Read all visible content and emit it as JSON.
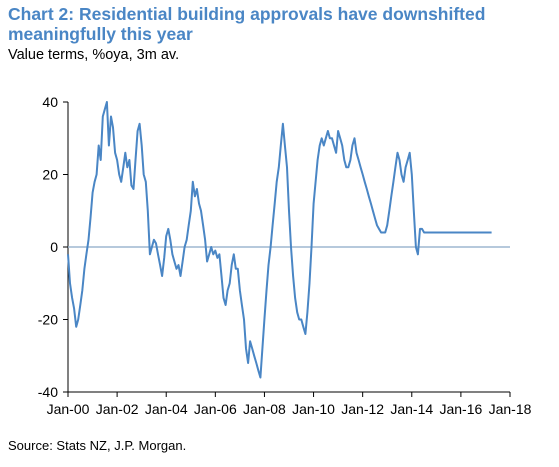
{
  "title": "Chart 2: Residential building approvals have downshifted meaningfully this year",
  "subtitle": "Value terms, %oya, 3m av.",
  "source": "Source: Stats NZ, J.P. Morgan.",
  "chart_data": {
    "type": "line",
    "xlim": [
      "2000-01",
      "2018-01"
    ],
    "ylim": [
      -40,
      40
    ],
    "yticks": [
      40,
      20,
      0,
      -20,
      -40
    ],
    "ytick_labels": [
      "40",
      "20",
      "0",
      "-20",
      "-40"
    ],
    "xticks": [
      "2000-01",
      "2002-01",
      "2004-01",
      "2006-01",
      "2008-01",
      "2010-01",
      "2012-01",
      "2014-01",
      "2016-01",
      "2018-01"
    ],
    "xtick_labels": [
      "Jan-00",
      "Jan-02",
      "Jan-04",
      "Jan-06",
      "Jan-08",
      "Jan-10",
      "Jan-12",
      "Jan-14",
      "Jan-16",
      "Jan-18"
    ],
    "grid": false,
    "zero_line": true,
    "line_color": "#4a86c5",
    "zero_line_color": "#9db7d0",
    "series": [
      {
        "name": "",
        "x": [
          "2000-01",
          "2000-02",
          "2000-03",
          "2000-04",
          "2000-05",
          "2000-06",
          "2000-07",
          "2000-08",
          "2000-09",
          "2000-10",
          "2000-11",
          "2000-12",
          "2001-01",
          "2001-02",
          "2001-03",
          "2001-04",
          "2001-05",
          "2001-06",
          "2001-07",
          "2001-08",
          "2001-09",
          "2001-10",
          "2001-11",
          "2001-12",
          "2002-01",
          "2002-02",
          "2002-03",
          "2002-04",
          "2002-05",
          "2002-06",
          "2002-07",
          "2002-08",
          "2002-09",
          "2002-10",
          "2002-11",
          "2002-12",
          "2003-01",
          "2003-02",
          "2003-03",
          "2003-04",
          "2003-05",
          "2003-06",
          "2003-07",
          "2003-08",
          "2003-09",
          "2003-10",
          "2003-11",
          "2003-12",
          "2004-01",
          "2004-02",
          "2004-03",
          "2004-04",
          "2004-05",
          "2004-06",
          "2004-07",
          "2004-08",
          "2004-09",
          "2004-10",
          "2004-11",
          "2004-12",
          "2005-01",
          "2005-02",
          "2005-03",
          "2005-04",
          "2005-05",
          "2005-06",
          "2005-07",
          "2005-08",
          "2005-09",
          "2005-10",
          "2005-11",
          "2005-12",
          "2006-01",
          "2006-02",
          "2006-03",
          "2006-04",
          "2006-05",
          "2006-06",
          "2006-07",
          "2006-08",
          "2006-09",
          "2006-10",
          "2006-11",
          "2006-12",
          "2007-01",
          "2007-02",
          "2007-03",
          "2007-04",
          "2007-05",
          "2007-06",
          "2007-07",
          "2007-08",
          "2007-09",
          "2007-10",
          "2007-11",
          "2007-12",
          "2008-01",
          "2008-02",
          "2008-03",
          "2008-04",
          "2008-05",
          "2008-06",
          "2008-07",
          "2008-08",
          "2008-09",
          "2008-10",
          "2008-11",
          "2008-12",
          "2009-01",
          "2009-02",
          "2009-03",
          "2009-04",
          "2009-05",
          "2009-06",
          "2009-07",
          "2009-08",
          "2009-09",
          "2009-10",
          "2009-11",
          "2009-12",
          "2010-01",
          "2010-02",
          "2010-03",
          "2010-04",
          "2010-05",
          "2010-06",
          "2010-07",
          "2010-08",
          "2010-09",
          "2010-10",
          "2010-11",
          "2010-12",
          "2011-01",
          "2011-02",
          "2011-03",
          "2011-04",
          "2011-05",
          "2011-06",
          "2011-07",
          "2011-08",
          "2011-09",
          "2011-10",
          "2011-11",
          "2011-12",
          "2012-01",
          "2012-02",
          "2012-03",
          "2012-04",
          "2012-05",
          "2012-06",
          "2012-07",
          "2012-08",
          "2012-09",
          "2012-10",
          "2012-11",
          "2012-12",
          "2013-01",
          "2013-02",
          "2013-03",
          "2013-04",
          "2013-05",
          "2013-06",
          "2013-07",
          "2013-08",
          "2013-09",
          "2013-10",
          "2013-11",
          "2013-12",
          "2014-01",
          "2014-02",
          "2014-03",
          "2014-04",
          "2014-05",
          "2014-06",
          "2014-07",
          "2014-08",
          "2014-09",
          "2014-10",
          "2014-11",
          "2014-12",
          "2015-01",
          "2015-02",
          "2015-03",
          "2015-04",
          "2015-05",
          "2015-06",
          "2015-07",
          "2015-08",
          "2015-09",
          "2015-10",
          "2015-11",
          "2015-12",
          "2016-01",
          "2016-02",
          "2016-03",
          "2016-04",
          "2016-05",
          "2016-06",
          "2016-07",
          "2016-08",
          "2016-09",
          "2016-10",
          "2016-11",
          "2016-12",
          "2017-01",
          "2017-02",
          "2017-03",
          "2017-04"
        ],
        "values": [
          -2,
          -10,
          -14,
          -17,
          -22,
          -20,
          -16,
          -12,
          -6,
          -2,
          2,
          8,
          15,
          18,
          20,
          28,
          24,
          36,
          38,
          40,
          28,
          36,
          33,
          26,
          24,
          20,
          18,
          22,
          26,
          22,
          24,
          17,
          16,
          24,
          32,
          34,
          28,
          20,
          18,
          10,
          -2,
          0,
          2,
          1,
          -2,
          -5,
          -8,
          -3,
          3,
          5,
          2,
          -2,
          -4,
          -6,
          -5,
          -8,
          -4,
          0,
          2,
          6,
          10,
          18,
          14,
          16,
          12,
          10,
          6,
          2,
          -4,
          -2,
          0,
          -2,
          -1,
          -3,
          -2,
          -8,
          -14,
          -16,
          -12,
          -10,
          -5,
          -2,
          -6,
          -6,
          -12,
          -16,
          -20,
          -28,
          -32,
          -26,
          -28,
          -30,
          -32,
          -34,
          -36,
          -28,
          -20,
          -12,
          -5,
          0,
          6,
          12,
          18,
          22,
          28,
          34,
          28,
          22,
          10,
          0,
          -8,
          -14,
          -18,
          -20,
          -20,
          -22,
          -24,
          -18,
          -10,
          0,
          12,
          18,
          24,
          28,
          30,
          28,
          30,
          32,
          30,
          30,
          28,
          26,
          32,
          30,
          28,
          24,
          22,
          22,
          24,
          28,
          30,
          26,
          24,
          22,
          20,
          18,
          16,
          14,
          12,
          10,
          8,
          6,
          5,
          4,
          4,
          4,
          6,
          10,
          14,
          18,
          22,
          26,
          24,
          20,
          18,
          22,
          24,
          26,
          20,
          10,
          0,
          -2,
          5,
          5,
          4,
          4,
          4,
          4,
          4,
          4,
          4,
          4,
          4,
          4,
          4,
          4,
          4,
          4,
          4,
          4,
          4,
          4,
          4,
          4,
          4,
          4,
          4,
          4,
          4,
          4,
          4,
          4,
          4,
          4,
          4,
          4,
          4,
          4
        ]
      }
    ]
  }
}
